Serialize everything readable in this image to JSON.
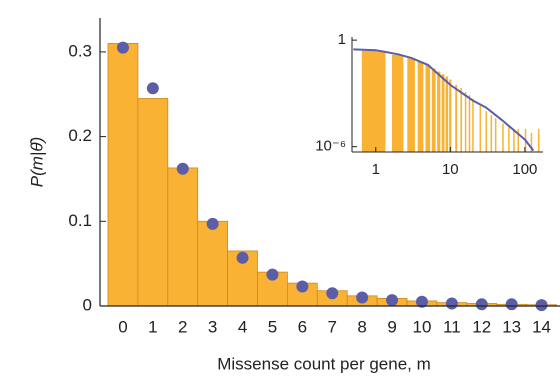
{
  "chart_data": [
    {
      "type": "bar",
      "y_label": "P(m|θ̂)",
      "x_label": "Missense count per gene, m",
      "categories": [
        "0",
        "1",
        "2",
        "3",
        "4",
        "5",
        "6",
        "7",
        "8",
        "9",
        "10",
        "11",
        "12",
        "13",
        "14"
      ],
      "series": [
        {
          "type": "bar",
          "color": "#f9b233",
          "values": [
            0.31,
            0.245,
            0.163,
            0.1,
            0.065,
            0.04,
            0.027,
            0.018,
            0.012,
            0.009,
            0.006,
            0.004,
            0.003,
            0.002,
            0.0015
          ]
        },
        {
          "type": "scatter",
          "color": "#5b5ea6",
          "values": [
            0.305,
            0.257,
            0.162,
            0.097,
            0.057,
            0.037,
            0.023,
            0.015,
            0.01,
            0.007,
            0.005,
            0.003,
            0.002,
            0.002,
            0.001
          ]
        }
      ],
      "ylim": [
        0,
        0.34
      ],
      "yticks": [
        0,
        0.1,
        0.2,
        0.3
      ]
    },
    {
      "type": "loglog",
      "xlim": [
        0.48,
        175
      ],
      "xticks": [
        1,
        10,
        100
      ],
      "ylim": [
        5e-07,
        1.5
      ],
      "yticks": [
        1,
        {
          "value": 1e-06,
          "label": "10⁻⁶"
        }
      ],
      "bars": {
        "color": "#f9b233",
        "x": [
          1,
          2,
          3,
          4,
          5,
          6,
          7,
          8,
          9,
          10,
          12,
          14,
          16,
          18,
          20,
          25,
          30,
          35,
          40,
          50,
          60,
          70,
          80,
          100,
          120,
          150
        ],
        "values": [
          0.25,
          0.15,
          0.1,
          0.06,
          0.04,
          0.025,
          0.017,
          0.012,
          0.009,
          0.006,
          0.003,
          0.002,
          0.0012,
          0.0008,
          0.0005,
          0.0002,
          0.0001,
          6e-05,
          4e-05,
          2e-05,
          1.5e-05,
          1e-05,
          1e-05,
          1e-05,
          6e-06,
          1e-05
        ]
      },
      "line": {
        "color": "#5b5ea6",
        "x": [
          0.5,
          1,
          2,
          3,
          5,
          10,
          20,
          30,
          50,
          100,
          130
        ],
        "values": [
          0.3,
          0.27,
          0.16,
          0.1,
          0.04,
          0.003,
          0.0004,
          0.00016,
          3e-05,
          2.5e-06,
          6e-07
        ]
      }
    }
  ]
}
